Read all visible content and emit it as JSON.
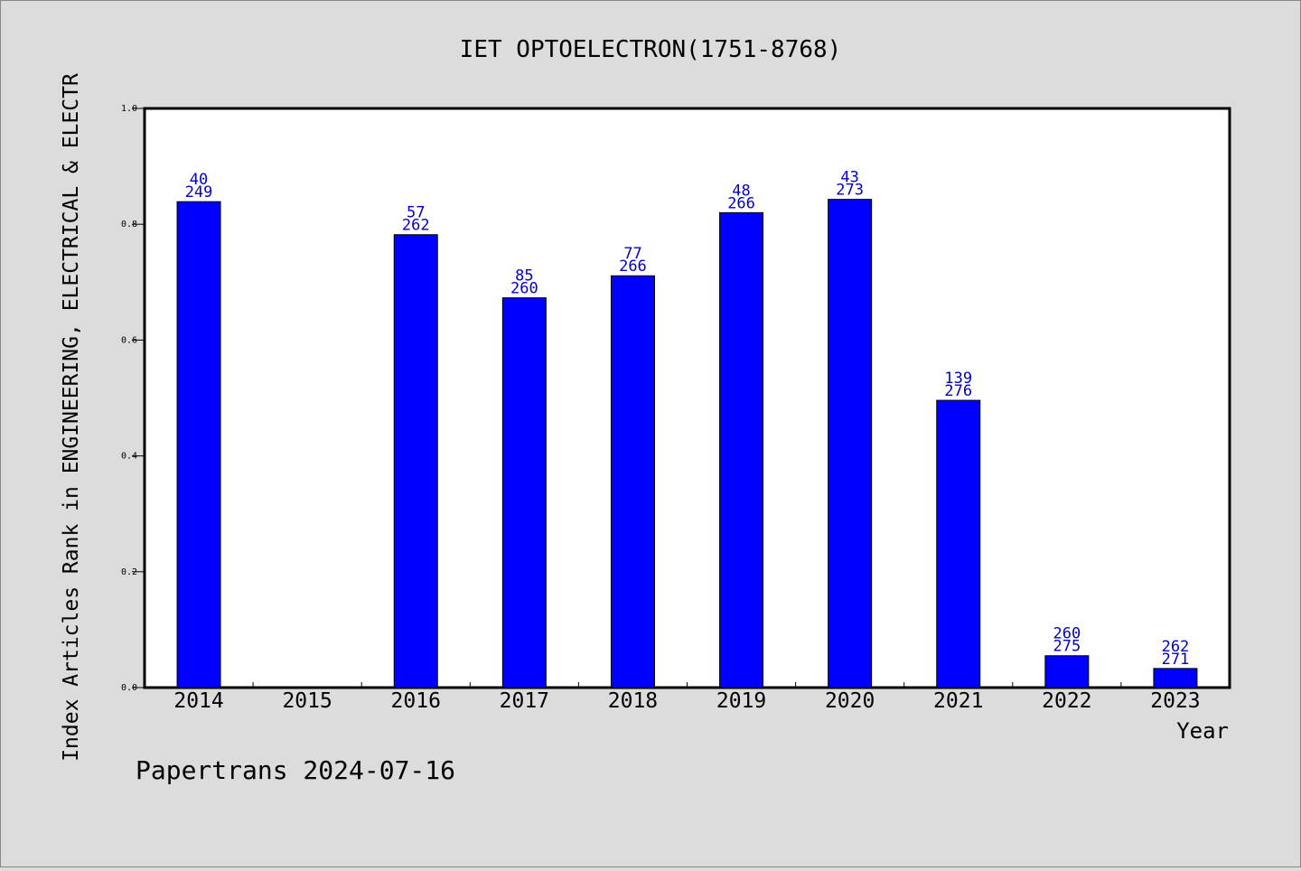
{
  "chart_data": {
    "type": "bar",
    "title": "IET OPTOELECTRON(1751-8768)",
    "xlabel": "Year",
    "ylabel": "Index Articles Rank in ENGINEERING, ELECTRICAL & ELECTR",
    "footer": "Papertrans 2024-07-16",
    "ylim": [
      0,
      1.0
    ],
    "yticks": [
      "0.0",
      "0.2",
      "0.4",
      "0.6",
      "0.8",
      "1.0"
    ],
    "categories": [
      "2014",
      "2015",
      "2016",
      "2017",
      "2018",
      "2019",
      "2020",
      "2021",
      "2022",
      "2023"
    ],
    "values": [
      0.839,
      null,
      0.782,
      0.673,
      0.711,
      0.82,
      0.843,
      0.496,
      0.055,
      0.033
    ],
    "rank_labels": [
      "40",
      "",
      "57",
      "85",
      "77",
      "48",
      "43",
      "139",
      "260",
      "262"
    ],
    "total_labels": [
      "249",
      "",
      "262",
      "260",
      "266",
      "266",
      "273",
      "276",
      "275",
      "271"
    ],
    "grid": false,
    "legend": "none",
    "colors": {
      "bar": "#0000ff",
      "label": "#0000cc",
      "plot_bg": "#ffffff",
      "page_bg": "#dcdcdc"
    }
  }
}
